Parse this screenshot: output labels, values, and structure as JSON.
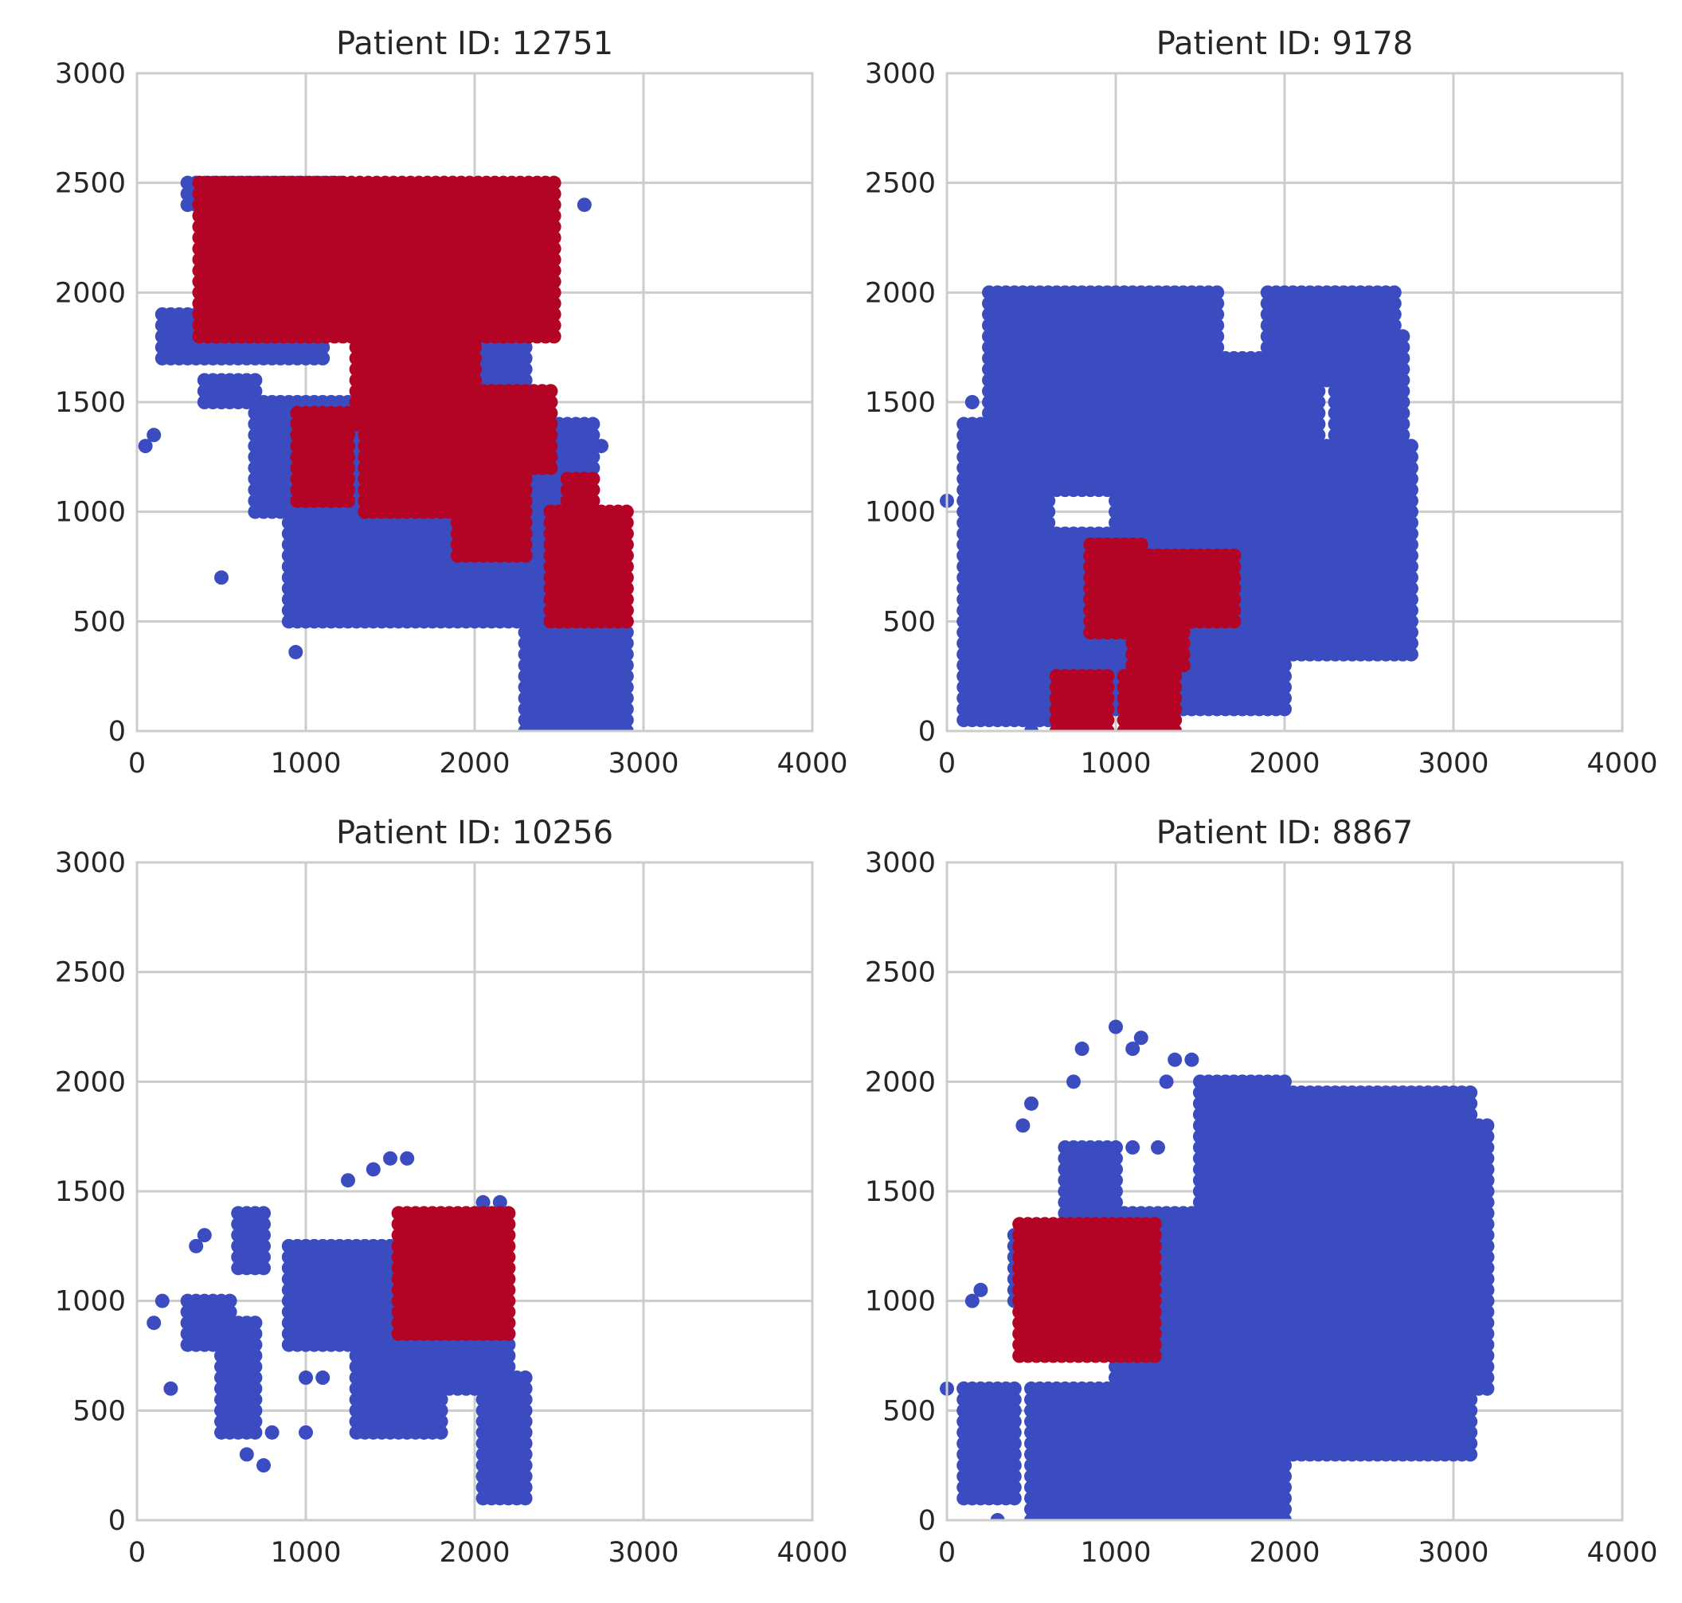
{
  "chart_data": [
    {
      "type": "scatter",
      "title": "Patient ID: 12751",
      "xlim": [
        0,
        4000
      ],
      "ylim": [
        0,
        3000
      ],
      "xticks": [
        "0",
        "1000",
        "2000",
        "3000",
        "4000"
      ],
      "yticks": [
        "0",
        "500",
        "1000",
        "1500",
        "2000",
        "2500",
        "3000"
      ],
      "grid": true,
      "series": [
        {
          "color": "#3b4cc0",
          "regions": [
            [
              [
                300,
                1200
              ],
              [
                2400,
                2500
              ]
            ],
            [
              [
                150,
                1100
              ],
              [
                1700,
                1900
              ]
            ],
            [
              [
                400,
                700
              ],
              [
                1500,
                1600
              ]
            ],
            [
              [
                700,
                1500
              ],
              [
                1000,
                1500
              ]
            ],
            [
              [
                900,
                2400
              ],
              [
                500,
                1000
              ]
            ],
            [
              [
                2300,
                2900
              ],
              [
                0,
                900
              ]
            ],
            [
              [
                1600,
                2700
              ],
              [
                800,
                1400
              ]
            ],
            [
              [
                2000,
                2300
              ],
              [
                1400,
                2400
              ]
            ],
            [
              [
                1000,
                1500
              ],
              [
                700,
                1100
              ]
            ]
          ],
          "points": [
            [
              50,
              1300
            ],
            [
              100,
              1350
            ],
            [
              500,
              700
            ],
            [
              940,
              360
            ],
            [
              2650,
              2400
            ],
            [
              2750,
              1300
            ]
          ]
        },
        {
          "color": "#b40426",
          "regions": [
            [
              [
                370,
                2500
              ],
              [
                1800,
                2500
              ]
            ],
            [
              [
                1300,
                2000
              ],
              [
                1400,
                1900
              ]
            ],
            [
              [
                950,
                1250
              ],
              [
                1050,
                1450
              ]
            ],
            [
              [
                1350,
                2300
              ],
              [
                1000,
                1400
              ]
            ],
            [
              [
                2000,
                2450
              ],
              [
                1200,
                1550
              ]
            ],
            [
              [
                2450,
                2900
              ],
              [
                500,
                1000
              ]
            ],
            [
              [
                2550,
                2700
              ],
              [
                950,
                1150
              ]
            ],
            [
              [
                1900,
                2300
              ],
              [
                800,
                1100
              ]
            ]
          ]
        }
      ]
    },
    {
      "type": "scatter",
      "title": "Patient ID: 9178",
      "xlim": [
        0,
        4000
      ],
      "ylim": [
        0,
        3000
      ],
      "xticks": [
        "0",
        "1000",
        "2000",
        "3000",
        "4000"
      ],
      "yticks": [
        "0",
        "500",
        "1000",
        "1500",
        "2000",
        "2500",
        "3000"
      ],
      "grid": true,
      "series": [
        {
          "color": "#3b4cc0",
          "regions": [
            [
              [
                250,
                1600
              ],
              [
                1100,
                2000
              ]
            ],
            [
              [
                1000,
                1900
              ],
              [
                700,
                1400
              ]
            ],
            [
              [
                1900,
                2750
              ],
              [
                350,
                1300
              ]
            ],
            [
              [
                1900,
                2650
              ],
              [
                1600,
                2000
              ]
            ],
            [
              [
                100,
                600
              ],
              [
                50,
                1400
              ]
            ],
            [
              [
                500,
                1100
              ],
              [
                200,
                900
              ]
            ],
            [
              [
                1000,
                2000
              ],
              [
                100,
                700
              ]
            ],
            [
              [
                2300,
                2700
              ],
              [
                1300,
                1800
              ]
            ],
            [
              [
                1500,
                2200
              ],
              [
                1200,
                1700
              ]
            ]
          ],
          "points": [
            [
              0,
              1050
            ],
            [
              150,
              1500
            ],
            [
              2300,
              2000
            ],
            [
              2400,
              1300
            ],
            [
              500,
              0
            ]
          ]
        },
        {
          "color": "#b40426",
          "regions": [
            [
              [
                850,
                1150
              ],
              [
                450,
                850
              ]
            ],
            [
              [
                1200,
                1700
              ],
              [
                500,
                800
              ]
            ],
            [
              [
                1100,
                1400
              ],
              [
                300,
                600
              ]
            ],
            [
              [
                650,
                950
              ],
              [
                0,
                250
              ]
            ],
            [
              [
                1050,
                1350
              ],
              [
                0,
                250
              ]
            ]
          ]
        }
      ]
    },
    {
      "type": "scatter",
      "title": "Patient ID: 10256",
      "xlim": [
        0,
        4000
      ],
      "ylim": [
        0,
        3000
      ],
      "xticks": [
        "0",
        "1000",
        "2000",
        "3000",
        "4000"
      ],
      "yticks": [
        "0",
        "500",
        "1000",
        "1500",
        "2000",
        "2500",
        "3000"
      ],
      "grid": true,
      "series": [
        {
          "color": "#3b4cc0",
          "regions": [
            [
              [
                1300,
                1800
              ],
              [
                400,
                900
              ]
            ],
            [
              [
                1750,
                2200
              ],
              [
                600,
                900
              ]
            ],
            [
              [
                2050,
                2300
              ],
              [
                100,
                650
              ]
            ],
            [
              [
                900,
                1600
              ],
              [
                800,
                1250
              ]
            ],
            [
              [
                600,
                750
              ],
              [
                1150,
                1400
              ]
            ],
            [
              [
                500,
                700
              ],
              [
                400,
                900
              ]
            ],
            [
              [
                300,
                550
              ],
              [
                800,
                1000
              ]
            ]
          ],
          "points": [
            [
              100,
              900
            ],
            [
              150,
              1000
            ],
            [
              200,
              600
            ],
            [
              350,
              1250
            ],
            [
              400,
              1300
            ],
            [
              650,
              300
            ],
            [
              750,
              250
            ],
            [
              800,
              400
            ],
            [
              1000,
              400
            ],
            [
              1000,
              650
            ],
            [
              1250,
              1550
            ],
            [
              1400,
              1600
            ],
            [
              1500,
              1650
            ],
            [
              1600,
              1650
            ],
            [
              1700,
              400
            ],
            [
              2050,
              1450
            ],
            [
              2150,
              1450
            ],
            [
              2050,
              200
            ],
            [
              1100,
              650
            ]
          ]
        },
        {
          "color": "#b40426",
          "regions": [
            [
              [
                1550,
                2200
              ],
              [
                850,
                1400
              ]
            ]
          ]
        }
      ]
    },
    {
      "type": "scatter",
      "title": "Patient ID: 8867",
      "xlim": [
        0,
        4000
      ],
      "ylim": [
        0,
        3000
      ],
      "xticks": [
        "0",
        "1000",
        "2000",
        "3000",
        "4000"
      ],
      "yticks": [
        "0",
        "500",
        "1000",
        "1500",
        "2000",
        "2500",
        "3000"
      ],
      "grid": true,
      "series": [
        {
          "color": "#3b4cc0",
          "regions": [
            [
              [
                1500,
                3100
              ],
              [
                300,
                1950
              ]
            ],
            [
              [
                1000,
                2000
              ],
              [
                0,
                1400
              ]
            ],
            [
              [
                500,
                1500
              ],
              [
                0,
                600
              ]
            ],
            [
              [
                2500,
                3200
              ],
              [
                600,
                1800
              ]
            ],
            [
              [
                1500,
                2000
              ],
              [
                1400,
                2000
              ]
            ],
            [
              [
                400,
                700
              ],
              [
                1000,
                1300
              ]
            ],
            [
              [
                100,
                400
              ],
              [
                100,
                600
              ]
            ],
            [
              [
                700,
                1000
              ],
              [
                1400,
                1700
              ]
            ],
            [
              [
                2800,
                3200
              ],
              [
                1000,
                1600
              ]
            ]
          ],
          "points": [
            [
              0,
              600
            ],
            [
              100,
              600
            ],
            [
              150,
              1000
            ],
            [
              200,
              1050
            ],
            [
              450,
              1800
            ],
            [
              500,
              1900
            ],
            [
              750,
              2000
            ],
            [
              800,
              2150
            ],
            [
              1000,
              2250
            ],
            [
              1100,
              2150
            ],
            [
              1150,
              2200
            ],
            [
              1350,
              2100
            ],
            [
              1450,
              2100
            ],
            [
              1300,
              2000
            ],
            [
              1100,
              1700
            ],
            [
              1250,
              1700
            ],
            [
              3200,
              1600
            ],
            [
              300,
              0
            ]
          ]
        },
        {
          "color": "#b40426",
          "regions": [
            [
              [
                430,
                1250
              ],
              [
                750,
                1350
              ]
            ]
          ]
        }
      ]
    }
  ]
}
